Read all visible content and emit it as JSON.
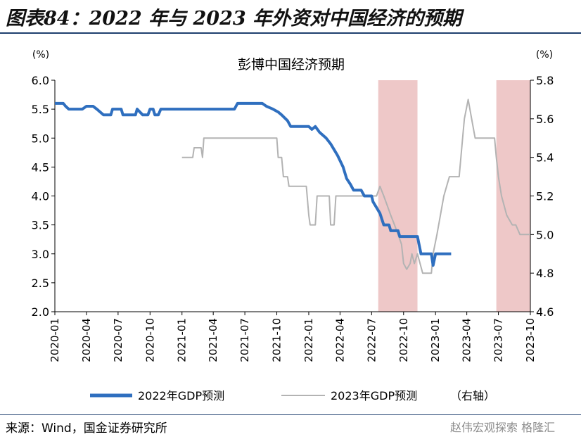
{
  "figure_title": "图表84：2022 年与 2023 年外资对中国经济的预期",
  "source": "来源：Wind，国金证券研究所",
  "watermark": "赵伟宏观探索  格隆汇",
  "colors": {
    "series_2022": "#2f6fbf",
    "series_2023": "#b3b3b3",
    "shade": "#eec8c8",
    "rule": "#1f3f6e"
  },
  "chart_data": {
    "type": "line",
    "title": "彭博中国经济预期",
    "left_axis": {
      "unit": "(%)",
      "ylim": [
        2.0,
        6.0
      ],
      "ticks": [
        "6.0",
        "5.5",
        "5.0",
        "4.5",
        "4.0",
        "3.5",
        "3.0",
        "2.5",
        "2.0"
      ]
    },
    "right_axis": {
      "unit": "(%)",
      "ylim": [
        4.6,
        5.8
      ],
      "ticks": [
        "5.8",
        "5.6",
        "5.4",
        "5.2",
        "5.0",
        "4.8",
        "4.6"
      ]
    },
    "x_ticks": [
      "2020-01",
      "2020-04",
      "2020-07",
      "2020-10",
      "2021-01",
      "2021-04",
      "2021-07",
      "2021-10",
      "2022-01",
      "2022-04",
      "2022-07",
      "2022-10",
      "2023-01",
      "2023-04",
      "2023-07",
      "2023-10"
    ],
    "shaded_periods": [
      [
        "2022-07-20",
        "2022-11-10"
      ],
      [
        "2023-06-25",
        "2023-10-01"
      ]
    ],
    "series": [
      {
        "name": "2022年GDP预测",
        "axis": "left",
        "points": [
          [
            "2020-01-01",
            5.6
          ],
          [
            "2020-01-25",
            5.6
          ],
          [
            "2020-02-01",
            5.55
          ],
          [
            "2020-02-10",
            5.5
          ],
          [
            "2020-03-20",
            5.5
          ],
          [
            "2020-04-01",
            5.55
          ],
          [
            "2020-04-20",
            5.55
          ],
          [
            "2020-05-01",
            5.5
          ],
          [
            "2020-05-20",
            5.4
          ],
          [
            "2020-06-10",
            5.4
          ],
          [
            "2020-06-15",
            5.5
          ],
          [
            "2020-07-10",
            5.5
          ],
          [
            "2020-07-15",
            5.4
          ],
          [
            "2020-08-20",
            5.4
          ],
          [
            "2020-08-25",
            5.5
          ],
          [
            "2020-09-10",
            5.4
          ],
          [
            "2020-09-25",
            5.4
          ],
          [
            "2020-10-01",
            5.5
          ],
          [
            "2020-10-10",
            5.5
          ],
          [
            "2020-10-15",
            5.4
          ],
          [
            "2020-10-25",
            5.4
          ],
          [
            "2020-11-01",
            5.5
          ],
          [
            "2021-06-01",
            5.5
          ],
          [
            "2021-06-10",
            5.6
          ],
          [
            "2021-08-20",
            5.6
          ],
          [
            "2021-09-01",
            5.55
          ],
          [
            "2021-09-20",
            5.5
          ],
          [
            "2021-10-05",
            5.45
          ],
          [
            "2021-10-15",
            5.4
          ],
          [
            "2021-11-01",
            5.3
          ],
          [
            "2021-11-10",
            5.2
          ],
          [
            "2022-01-01",
            5.2
          ],
          [
            "2022-01-10",
            5.15
          ],
          [
            "2022-01-20",
            5.2
          ],
          [
            "2022-02-01",
            5.1
          ],
          [
            "2022-02-20",
            5.0
          ],
          [
            "2022-03-05",
            4.9
          ],
          [
            "2022-03-15",
            4.8
          ],
          [
            "2022-03-25",
            4.7
          ],
          [
            "2022-04-10",
            4.5
          ],
          [
            "2022-04-20",
            4.3
          ],
          [
            "2022-05-01",
            4.2
          ],
          [
            "2022-05-10",
            4.1
          ],
          [
            "2022-06-01",
            4.1
          ],
          [
            "2022-06-10",
            4.0
          ],
          [
            "2022-07-01",
            4.0
          ],
          [
            "2022-07-05",
            3.9
          ],
          [
            "2022-07-15",
            3.8
          ],
          [
            "2022-07-25",
            3.7
          ],
          [
            "2022-08-05",
            3.5
          ],
          [
            "2022-08-20",
            3.5
          ],
          [
            "2022-08-25",
            3.4
          ],
          [
            "2022-09-15",
            3.4
          ],
          [
            "2022-09-20",
            3.3
          ],
          [
            "2022-11-10",
            3.3
          ],
          [
            "2022-11-20",
            3.0
          ],
          [
            "2022-12-20",
            3.0
          ],
          [
            "2022-12-25",
            2.8
          ],
          [
            "2023-01-01",
            3.0
          ],
          [
            "2023-02-15",
            3.0
          ]
        ]
      },
      {
        "name": "2023年GDP预测",
        "axis": "right",
        "points": [
          [
            "2021-01-01",
            5.4
          ],
          [
            "2021-02-01",
            5.4
          ],
          [
            "2021-02-05",
            5.45
          ],
          [
            "2021-02-25",
            5.45
          ],
          [
            "2021-03-01",
            5.4
          ],
          [
            "2021-03-05",
            5.5
          ],
          [
            "2021-10-01",
            5.5
          ],
          [
            "2021-10-05",
            5.4
          ],
          [
            "2021-10-15",
            5.4
          ],
          [
            "2021-10-20",
            5.3
          ],
          [
            "2021-11-01",
            5.3
          ],
          [
            "2021-11-05",
            5.25
          ],
          [
            "2021-12-25",
            5.25
          ],
          [
            "2022-01-01",
            5.1
          ],
          [
            "2022-01-05",
            5.05
          ],
          [
            "2022-01-20",
            5.05
          ],
          [
            "2022-01-25",
            5.2
          ],
          [
            "2022-03-01",
            5.2
          ],
          [
            "2022-03-05",
            5.05
          ],
          [
            "2022-03-15",
            5.05
          ],
          [
            "2022-03-20",
            5.2
          ],
          [
            "2022-07-15",
            5.2
          ],
          [
            "2022-07-25",
            5.25
          ],
          [
            "2022-08-05",
            5.2
          ],
          [
            "2022-08-15",
            5.15
          ],
          [
            "2022-08-25",
            5.1
          ],
          [
            "2022-09-05",
            5.05
          ],
          [
            "2022-09-15",
            5.0
          ],
          [
            "2022-09-25",
            4.95
          ],
          [
            "2022-10-01",
            4.85
          ],
          [
            "2022-10-10",
            4.82
          ],
          [
            "2022-10-20",
            4.85
          ],
          [
            "2022-10-25",
            4.9
          ],
          [
            "2022-11-01",
            4.85
          ],
          [
            "2022-11-10",
            4.9
          ],
          [
            "2022-11-25",
            4.8
          ],
          [
            "2022-12-20",
            4.8
          ],
          [
            "2022-12-25",
            4.9
          ],
          [
            "2023-01-05",
            5.0
          ],
          [
            "2023-01-15",
            5.1
          ],
          [
            "2023-01-25",
            5.2
          ],
          [
            "2023-02-10",
            5.3
          ],
          [
            "2023-03-10",
            5.3
          ],
          [
            "2023-03-20",
            5.5
          ],
          [
            "2023-03-25",
            5.6
          ],
          [
            "2023-04-05",
            5.7
          ],
          [
            "2023-04-15",
            5.6
          ],
          [
            "2023-04-25",
            5.5
          ],
          [
            "2023-06-20",
            5.5
          ],
          [
            "2023-06-25",
            5.4
          ],
          [
            "2023-07-01",
            5.3
          ],
          [
            "2023-07-10",
            5.2
          ],
          [
            "2023-07-25",
            5.1
          ],
          [
            "2023-08-10",
            5.05
          ],
          [
            "2023-08-20",
            5.05
          ],
          [
            "2023-09-01",
            5.0
          ],
          [
            "2023-10-01",
            5.0
          ]
        ]
      }
    ]
  }
}
